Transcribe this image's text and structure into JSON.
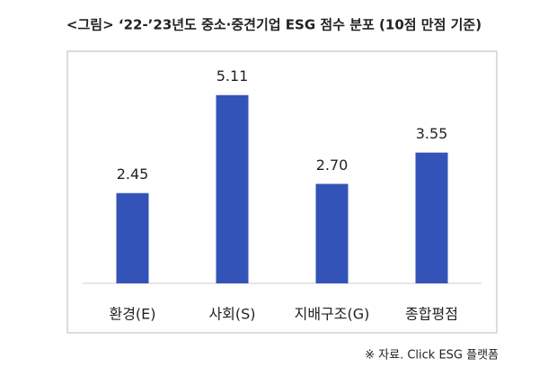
{
  "chart_data": {
    "type": "bar",
    "title": "<그림> ‘22-’23년도 중소·중견기업 ESG 점수 분포 (10점 만점 기준)",
    "categories": [
      "환경(E)",
      "사회(S)",
      "지배구조(G)",
      "종합평점"
    ],
    "values": [
      2.45,
      5.11,
      2.7,
      3.55
    ],
    "value_labels": [
      "2.45",
      "5.11",
      "2.70",
      "3.55"
    ],
    "color": "#3353b8",
    "ylim": [
      0,
      6.3
    ],
    "source": "※ 자료. Click ESG 플랫폼"
  }
}
